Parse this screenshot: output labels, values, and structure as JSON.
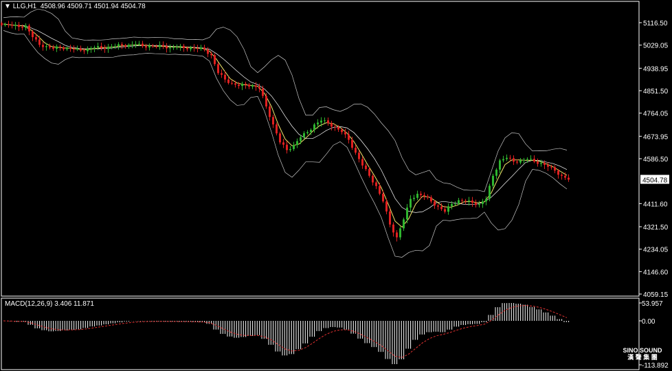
{
  "header": {
    "symbol": "LLG,H1",
    "ohlc": "4508.96 4509.71 4501.94 4504.78"
  },
  "macd": {
    "label": "MACD(12,26,9) 3.406 11.871",
    "ticks": [
      "53.957",
      "0.00",
      "-113.892"
    ]
  },
  "logo": {
    "line1": "SINO SOUND",
    "line2": "漢 聲 集 團"
  },
  "colors": {
    "bull": "#2fb52f",
    "bear": "#e02020",
    "ma": "#f2e56b",
    "bands": "#c8c8c8",
    "signal": "#e03030",
    "histogram": "#ffffff",
    "border": "#ffffff"
  },
  "chart_data": {
    "type": "candlestick",
    "symbol": "LLG",
    "timeframe": "H1",
    "ylim": [
      4040,
      5150
    ],
    "y_ticks": [
      5116.5,
      5029.05,
      4938.95,
      4851.5,
      4764.05,
      4673.95,
      4586.5,
      4411.6,
      4321.5,
      4234.05,
      4146.6,
      4059.15
    ],
    "y_tick_labels": [
      "5116.50",
      "5029.05",
      "4938.95",
      "4851.50",
      "4764.05",
      "4673.95",
      "4586.50",
      "4411.60",
      "4321.50",
      "4234.05",
      "4146.60",
      "4059.15"
    ],
    "current_price": "4504.78",
    "indicators": [
      "Bollinger Bands",
      "Moving Average",
      "MACD(12,26,9)"
    ],
    "closes": [
      5111,
      5105,
      5100,
      5105,
      5060,
      5030,
      5025,
      5015,
      5020,
      5018,
      5012,
      5008,
      5015,
      5020,
      5018,
      5022,
      5025,
      5028,
      5030,
      5032,
      5025,
      5027,
      5022,
      5025,
      5020,
      5022,
      5018,
      5020,
      5015,
      5012,
      4990,
      4920,
      4895,
      4880,
      4870,
      4875,
      4872,
      4860,
      4790,
      4720,
      4650,
      4620,
      4640,
      4670,
      4690,
      4720,
      4735,
      4725,
      4710,
      4690,
      4660,
      4610,
      4560,
      4520,
      4480,
      4420,
      4330,
      4280,
      4350,
      4430,
      4450,
      4440,
      4420,
      4400,
      4380,
      4410,
      4425,
      4420,
      4415,
      4410,
      4430,
      4520,
      4580,
      4590,
      4575,
      4580,
      4585,
      4575,
      4570,
      4555,
      4540,
      4520,
      4505
    ]
  }
}
